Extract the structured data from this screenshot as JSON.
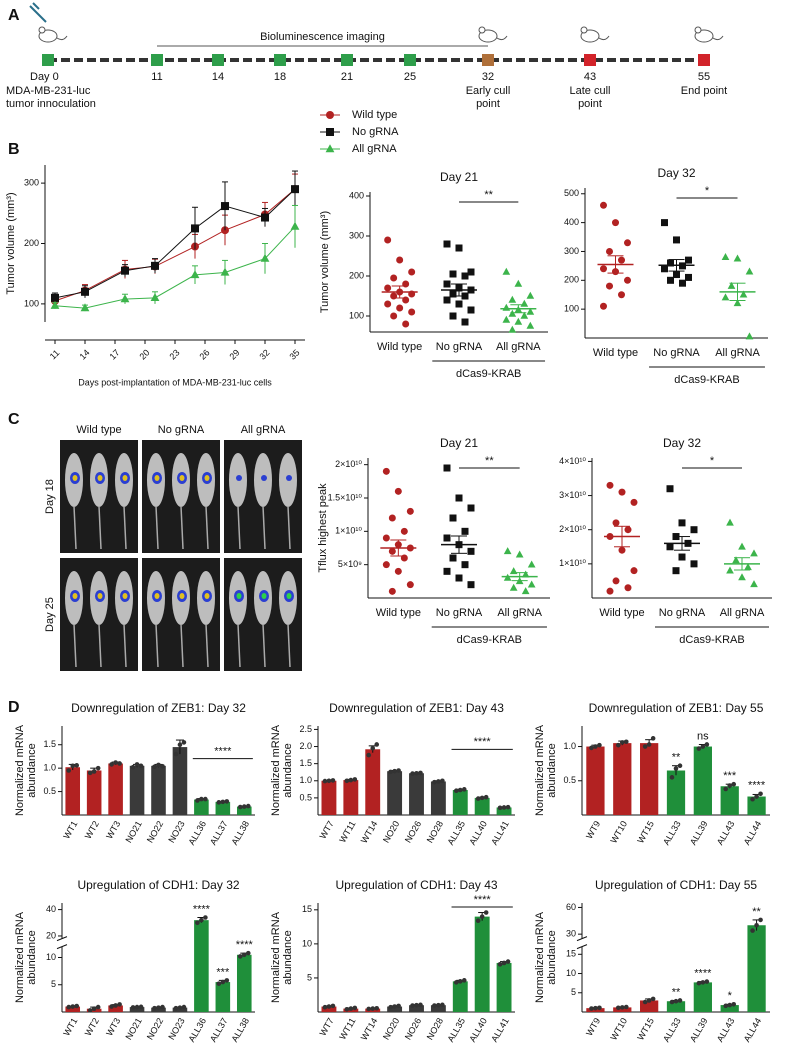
{
  "panel_labels": [
    "A",
    "B",
    "C",
    "D"
  ],
  "timeline": {
    "imaging_label": "Bioluminescence imaging",
    "days": [
      {
        "label": "Day 0",
        "color": "#2e9e4a",
        "note": [
          "MDA-MB-231-luc",
          "tumor innoculation"
        ]
      },
      {
        "label": "11",
        "color": "#2e9e4a"
      },
      {
        "label": "14",
        "color": "#2e9e4a"
      },
      {
        "label": "18",
        "color": "#2e9e4a"
      },
      {
        "label": "21",
        "color": "#2e9e4a"
      },
      {
        "label": "25",
        "color": "#2e9e4a"
      },
      {
        "label": "32",
        "color": "#b0703a",
        "note": [
          "Early cull",
          "point"
        ]
      },
      {
        "label": "43",
        "color": "#d2232a",
        "note": [
          "Late cull",
          "point"
        ]
      },
      {
        "label": "55",
        "color": "#d2232a",
        "note": [
          "End point"
        ]
      }
    ]
  },
  "images": {
    "columns": [
      "Wild type",
      "No gRNA",
      "All gRNA"
    ],
    "rows": [
      "Day 18",
      "Day 25"
    ]
  },
  "chart_data": [
    {
      "type": "line",
      "xlabel": "Days post-implantation of MDA-MB-231-luc cells",
      "ylabel": "Tumor volume (mm³)",
      "x": [
        11,
        14,
        18,
        21,
        25,
        28,
        32,
        35
      ],
      "xlim": [
        10,
        36
      ],
      "xticks": [
        11,
        14,
        17,
        20,
        23,
        26,
        29,
        32,
        35
      ],
      "ylim": [
        70,
        330
      ],
      "yticks": [
        100,
        200,
        300
      ],
      "legend": "right",
      "series": [
        {
          "name": "Wild type",
          "color": "#b22222",
          "marker": "circle",
          "values": [
            105,
            122,
            157,
            162,
            195,
            222,
            248,
            290
          ],
          "errors": [
            8,
            10,
            15,
            12,
            20,
            25,
            20,
            25
          ]
        },
        {
          "name": "No gRNA",
          "color": "#111111",
          "marker": "square",
          "values": [
            110,
            120,
            155,
            163,
            225,
            262,
            243,
            290
          ],
          "errors": [
            8,
            10,
            10,
            12,
            35,
            40,
            15,
            30
          ]
        },
        {
          "name": "All gRNA",
          "color": "#3cb44b",
          "marker": "triangle",
          "values": [
            97,
            93,
            108,
            110,
            148,
            152,
            175,
            228
          ],
          "errors": [
            5,
            5,
            8,
            10,
            15,
            20,
            25,
            35
          ]
        }
      ]
    },
    {
      "type": "dotplot",
      "title": "Day 21",
      "ylabel": "Tumor volume (mm³)",
      "ylim": [
        60,
        410
      ],
      "yticks": [
        100,
        200,
        300,
        400
      ],
      "significance": "**",
      "bracket": "dCas9-KRAB",
      "groups": [
        {
          "name": "Wild type",
          "color": "#b22222",
          "marker": "circle",
          "values": [
            290,
            240,
            210,
            195,
            180,
            170,
            160,
            155,
            150,
            140,
            130,
            120,
            110,
            100,
            80
          ],
          "mean": 160,
          "sem": 15
        },
        {
          "name": "No gRNA",
          "color": "#111111",
          "marker": "square",
          "values": [
            280,
            270,
            210,
            205,
            200,
            180,
            170,
            165,
            155,
            150,
            140,
            130,
            115,
            100,
            85
          ],
          "mean": 165,
          "sem": 15
        },
        {
          "name": "All gRNA",
          "color": "#3cb44b",
          "marker": "triangle",
          "values": [
            210,
            180,
            150,
            140,
            130,
            120,
            115,
            110,
            105,
            100,
            90,
            85,
            75,
            65
          ],
          "mean": 118,
          "sem": 10
        }
      ]
    },
    {
      "type": "dotplot",
      "title": "Day 32",
      "ylim": [
        0,
        520
      ],
      "yticks": [
        100,
        200,
        300,
        400,
        500
      ],
      "significance": "*",
      "bracket": "dCas9-KRAB",
      "groups": [
        {
          "name": "Wild type",
          "color": "#b22222",
          "marker": "circle",
          "values": [
            460,
            400,
            330,
            300,
            270,
            240,
            230,
            200,
            180,
            150,
            110
          ],
          "mean": 255,
          "sem": 30
        },
        {
          "name": "No gRNA",
          "color": "#111111",
          "marker": "square",
          "values": [
            400,
            340,
            270,
            260,
            250,
            240,
            220,
            210,
            200,
            190
          ],
          "mean": 252,
          "sem": 20
        },
        {
          "name": "All gRNA",
          "color": "#3cb44b",
          "marker": "triangle",
          "values": [
            280,
            275,
            230,
            180,
            150,
            140,
            120,
            5
          ],
          "mean": 160,
          "sem": 30
        }
      ]
    },
    {
      "type": "dotplot",
      "title": "Day 21",
      "ylabel": "Tflux highest peak",
      "ylim": [
        0,
        21000000000
      ],
      "yticks": [
        {
          "value": 5000000000,
          "label": "5×10⁹"
        },
        {
          "value": 10000000000,
          "label": "1×10¹⁰"
        },
        {
          "value": 15000000000,
          "label": "1.5×10¹⁰"
        },
        {
          "value": 20000000000,
          "label": "2×10¹⁰"
        }
      ],
      "significance": "**",
      "bracket": "dCas9-KRAB",
      "groups": [
        {
          "name": "Wild type",
          "color": "#b22222",
          "marker": "circle",
          "values": [
            19000000000,
            16000000000,
            13000000000,
            12000000000,
            10000000000,
            9000000000,
            8000000000,
            7500000000,
            7000000000,
            6000000000,
            5000000000,
            4000000000,
            2000000000,
            1000000000
          ],
          "mean": 7500000000,
          "sem": 1200000000
        },
        {
          "name": "No gRNA",
          "color": "#111111",
          "marker": "square",
          "values": [
            19500000000,
            15000000000,
            13500000000,
            12000000000,
            10000000000,
            9000000000,
            8000000000,
            7000000000,
            6000000000,
            5000000000,
            4000000000,
            3000000000,
            2000000000
          ],
          "mean": 8000000000,
          "sem": 1300000000
        },
        {
          "name": "All gRNA",
          "color": "#3cb44b",
          "marker": "triangle",
          "values": [
            7000000000,
            6500000000,
            5000000000,
            4000000000,
            3500000000,
            3000000000,
            2500000000,
            2000000000,
            1500000000,
            1000000000
          ],
          "mean": 3200000000,
          "sem": 600000000
        }
      ]
    },
    {
      "type": "dotplot",
      "title": "Day 32",
      "ylim": [
        0,
        41000000000
      ],
      "yticks": [
        {
          "value": 10000000000,
          "label": "1×10¹⁰"
        },
        {
          "value": 20000000000,
          "label": "2×10¹⁰"
        },
        {
          "value": 30000000000,
          "label": "3×10¹⁰"
        },
        {
          "value": 40000000000,
          "label": "4×10¹⁰"
        }
      ],
      "significance": "*",
      "bracket": "dCas9-KRAB",
      "groups": [
        {
          "name": "Wild type",
          "color": "#b22222",
          "marker": "circle",
          "values": [
            33000000000,
            31000000000,
            28000000000,
            22000000000,
            20000000000,
            18000000000,
            14000000000,
            8000000000,
            5000000000,
            3000000000,
            2000000000
          ],
          "mean": 18000000000,
          "sem": 3000000000
        },
        {
          "name": "No gRNA",
          "color": "#111111",
          "marker": "square",
          "values": [
            32000000000,
            22000000000,
            20000000000,
            18000000000,
            16000000000,
            15000000000,
            12000000000,
            10000000000,
            8000000000
          ],
          "mean": 16000000000,
          "sem": 2000000000
        },
        {
          "name": "All gRNA",
          "color": "#3cb44b",
          "marker": "triangle",
          "values": [
            22000000000,
            15000000000,
            13000000000,
            11000000000,
            9000000000,
            8000000000,
            6000000000,
            4000000000
          ],
          "mean": 10000000000,
          "sem": 1800000000
        }
      ]
    },
    {
      "type": "bar",
      "title": "Downregulation of ZEB1: Day 32",
      "ylabel": [
        "Normalized mRNA",
        "abundance"
      ],
      "categories": [
        "WT1",
        "WT2",
        "WT3",
        "NO21",
        "NO22",
        "NO23",
        "ALL36",
        "ALL37",
        "ALL38"
      ],
      "colors": [
        "#b22222",
        "#b22222",
        "#b22222",
        "#3a3a3a",
        "#3a3a3a",
        "#3a3a3a",
        "#1f8f3a",
        "#1f8f3a",
        "#1f8f3a"
      ],
      "values": [
        1.02,
        0.95,
        1.1,
        1.05,
        1.05,
        1.45,
        0.33,
        0.28,
        0.18
      ],
      "errors": [
        0.06,
        0.05,
        0.03,
        0.03,
        0.03,
        0.15,
        0.02,
        0.01,
        0.01
      ],
      "points": [
        [
          0.95,
          1.05,
          1.06
        ],
        [
          0.9,
          0.93,
          1.0
        ],
        [
          1.08,
          1.12,
          1.1
        ],
        [
          1.02,
          1.08,
          1.05
        ],
        [
          1.03,
          1.07,
          1.04
        ],
        [
          1.3,
          1.5,
          1.55
        ],
        [
          0.31,
          0.34,
          0.34
        ],
        [
          0.27,
          0.28,
          0.29
        ],
        [
          0.17,
          0.18,
          0.19
        ]
      ],
      "ylim": [
        0,
        1.9
      ],
      "yticks": [
        0.5,
        {
          "value": 1,
          "label": "1.0"
        },
        1.5
      ],
      "significance": "****"
    },
    {
      "type": "bar",
      "title": "Downregulation of ZEB1: Day 43",
      "ylabel": [
        "Normalized mRNA",
        "abundance"
      ],
      "categories": [
        "WT7",
        "WT11",
        "WT14",
        "NO20",
        "NO26",
        "NO28",
        "ALL35",
        "ALL40",
        "ALL41"
      ],
      "colors": [
        "#b22222",
        "#b22222",
        "#b22222",
        "#3a3a3a",
        "#3a3a3a",
        "#3a3a3a",
        "#1f8f3a",
        "#1f8f3a",
        "#1f8f3a"
      ],
      "values": [
        1.0,
        1.02,
        1.92,
        1.28,
        1.22,
        0.98,
        0.73,
        0.5,
        0.22
      ],
      "errors": [
        0.01,
        0.02,
        0.1,
        0.02,
        0.01,
        0.02,
        0.02,
        0.02,
        0.01
      ],
      "points": [
        [
          0.99,
          1.0,
          1.01
        ],
        [
          1.0,
          1.02,
          1.04
        ],
        [
          1.75,
          1.95,
          2.06
        ],
        [
          1.26,
          1.28,
          1.3
        ],
        [
          1.21,
          1.22,
          1.23
        ],
        [
          0.96,
          0.98,
          1.0
        ],
        [
          0.71,
          0.73,
          0.75
        ],
        [
          0.48,
          0.5,
          0.52
        ],
        [
          0.21,
          0.22,
          0.23
        ]
      ],
      "ylim": [
        0,
        2.6
      ],
      "yticks": [
        0.5,
        {
          "value": 1,
          "label": "1.0"
        },
        1.5,
        {
          "value": 2,
          "label": "2.0"
        },
        2.5
      ],
      "significance": "****"
    },
    {
      "type": "bar",
      "title": "Downregulation of ZEB1: Day 55",
      "ylabel": [
        "Normalized mRNA",
        "abundance"
      ],
      "categories": [
        "WT9",
        "WT10",
        "WT15",
        "ALL33",
        "ALL39",
        "ALL43",
        "ALL44"
      ],
      "colors": [
        "#b22222",
        "#b22222",
        "#b22222",
        "#1f8f3a",
        "#1f8f3a",
        "#1f8f3a",
        "#1f8f3a"
      ],
      "values": [
        1.0,
        1.05,
        1.05,
        0.65,
        1.0,
        0.42,
        0.27
      ],
      "errors": [
        0.02,
        0.03,
        0.05,
        0.07,
        0.03,
        0.03,
        0.03
      ],
      "points": [
        [
          0.98,
          1.0,
          1.02
        ],
        [
          1.02,
          1.06,
          1.07
        ],
        [
          1.0,
          1.03,
          1.12
        ],
        [
          0.55,
          0.68,
          0.72
        ],
        [
          0.97,
          1.0,
          1.03
        ],
        [
          0.38,
          0.43,
          0.45
        ],
        [
          0.23,
          0.27,
          0.31
        ]
      ],
      "annotations": [
        null,
        null,
        null,
        "**",
        "ns",
        "***",
        "****"
      ],
      "ylim": [
        0,
        1.3
      ],
      "yticks": [
        0.5,
        {
          "value": 1,
          "label": "1.0"
        }
      ]
    },
    {
      "type": "bar",
      "title": "Upregulation of CDH1: Day 32",
      "ylabel": [
        "Normalized mRNA",
        "abundance"
      ],
      "categories": [
        "WT1",
        "WT2",
        "WT3",
        "NO21",
        "NO22",
        "NO23",
        "ALL36",
        "ALL37",
        "ALL38"
      ],
      "colors": [
        "#b22222",
        "#b22222",
        "#b22222",
        "#3a3a3a",
        "#3a3a3a",
        "#3a3a3a",
        "#1f8f3a",
        "#1f8f3a",
        "#1f8f3a"
      ],
      "values": [
        1.0,
        0.6,
        1.2,
        0.9,
        0.8,
        0.8,
        32,
        5.5,
        10.5
      ],
      "errors": [
        0.1,
        0.3,
        0.15,
        0.05,
        0.1,
        0.1,
        2,
        0.3,
        0.3
      ],
      "points": [
        [
          0.9,
          1.0,
          1.1
        ],
        [
          0.3,
          0.6,
          0.9
        ],
        [
          1.0,
          1.2,
          1.4
        ],
        [
          0.85,
          0.9,
          0.95
        ],
        [
          0.7,
          0.8,
          0.9
        ],
        [
          0.7,
          0.8,
          0.9
        ],
        [
          30,
          32,
          34
        ],
        [
          5.2,
          5.5,
          5.8
        ],
        [
          10.2,
          10.5,
          10.8
        ]
      ],
      "annotations": [
        null,
        null,
        null,
        null,
        null,
        null,
        "****",
        "***",
        "****"
      ],
      "ylim": [
        0,
        12
      ],
      "yticks": [
        5,
        10
      ],
      "y_break": {
        "ylim": [
          18,
          45
        ],
        "yticks": [
          20,
          40
        ]
      }
    },
    {
      "type": "bar",
      "title": "Upregulation of CDH1: Day 43",
      "ylabel": [
        "Normalized mRNA",
        "abundance"
      ],
      "categories": [
        "WT7",
        "WT11",
        "WT14",
        "NO20",
        "NO26",
        "NO28",
        "ALL35",
        "ALL40",
        "ALL41"
      ],
      "colors": [
        "#b22222",
        "#b22222",
        "#b22222",
        "#3a3a3a",
        "#3a3a3a",
        "#3a3a3a",
        "#1f8f3a",
        "#1f8f3a",
        "#1f8f3a"
      ],
      "values": [
        0.8,
        0.5,
        0.5,
        0.8,
        1.0,
        1.0,
        4.5,
        14,
        7.2
      ],
      "errors": [
        0.1,
        0.1,
        0.05,
        0.1,
        0.05,
        0.05,
        0.15,
        0.6,
        0.2
      ],
      "points": [
        [
          0.7,
          0.8,
          0.9
        ],
        [
          0.4,
          0.5,
          0.6
        ],
        [
          0.45,
          0.5,
          0.55
        ],
        [
          0.7,
          0.8,
          0.9
        ],
        [
          0.95,
          1.0,
          1.05
        ],
        [
          0.95,
          1.0,
          1.05
        ],
        [
          4.35,
          4.5,
          4.65
        ],
        [
          13.4,
          14,
          14.6
        ],
        [
          7.0,
          7.2,
          7.4
        ]
      ],
      "ylim": [
        0,
        16
      ],
      "yticks": [
        5,
        10,
        15
      ],
      "significance": "****"
    },
    {
      "type": "bar",
      "title": "Upregulation of CDH1: Day 55",
      "ylabel": [
        "Normalized mRNA",
        "abundance"
      ],
      "categories": [
        "WT9",
        "WT10",
        "WT15",
        "ALL33",
        "ALL39",
        "ALL43",
        "ALL44"
      ],
      "colors": [
        "#b22222",
        "#b22222",
        "#b22222",
        "#1f8f3a",
        "#1f8f3a",
        "#1f8f3a",
        "#1f8f3a"
      ],
      "values": [
        1.0,
        1.2,
        3.0,
        2.8,
        7.7,
        1.8,
        40
      ],
      "errors": [
        0.1,
        0.1,
        0.4,
        0.2,
        0.2,
        0.2,
        6
      ],
      "points": [
        [
          0.9,
          1.0,
          1.1
        ],
        [
          1.1,
          1.2,
          1.3
        ],
        [
          2.6,
          3.0,
          3.4
        ],
        [
          2.6,
          2.8,
          3.0
        ],
        [
          7.5,
          7.7,
          7.9
        ],
        [
          1.6,
          1.8,
          2.0
        ],
        [
          34,
          40,
          46
        ]
      ],
      "annotations": [
        null,
        null,
        null,
        "**",
        "****",
        "*",
        "**"
      ],
      "ylim": [
        0,
        17
      ],
      "yticks": [
        5,
        10,
        15
      ],
      "y_break": {
        "ylim": [
          25,
          65
        ],
        "yticks": [
          30,
          60
        ]
      }
    }
  ]
}
